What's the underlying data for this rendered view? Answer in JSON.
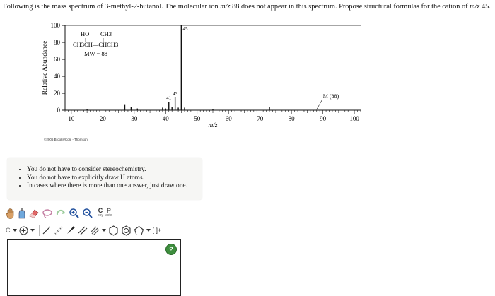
{
  "question": {
    "part1": "Following is the mass spectrum of 3-methyl-2-butanol. The molecular ion ",
    "mz1": "m/z",
    "part2": " 88 does not appear in this spectrum. Propose structural formulas for the cation of ",
    "mz2": "m/z",
    "part3": " 45."
  },
  "chart_data": {
    "type": "bar",
    "ylabel": "Relative Abundance",
    "xlabel": "m/z",
    "xlim": [
      8,
      102
    ],
    "ylim": [
      0,
      100
    ],
    "x_ticks": [
      10,
      20,
      30,
      40,
      50,
      60,
      70,
      80,
      90,
      100
    ],
    "y_ticks": [
      0,
      20,
      40,
      60,
      80,
      100
    ],
    "x": [
      15,
      27,
      29,
      31,
      39,
      40,
      41,
      42,
      43,
      44,
      45,
      46,
      55,
      73,
      88
    ],
    "y": [
      1.5,
      7,
      4,
      2,
      3,
      2,
      10,
      4,
      15,
      3,
      100,
      3,
      1,
      4,
      0.5
    ],
    "peak_labels": [
      {
        "x": 41,
        "text": "41"
      },
      {
        "x": 43,
        "text": "43"
      },
      {
        "x": 45,
        "text": "45"
      },
      {
        "x": 88,
        "text": "M (88)"
      }
    ],
    "structure": {
      "line1_ho": "HO",
      "line1_ch3": "CH3",
      "line2": "CH3CH—CHCH3",
      "line3": "MW = 88"
    }
  },
  "copyright": "©2006 Brooks/Cole - Thomson",
  "notes": [
    "You do not have to consider stereochemistry.",
    "You do not have to explicitly draw H atoms.",
    "In cases where there is more than one answer, just draw one."
  ],
  "toolbar": {
    "copy_letter": "C",
    "copy_label": "opy",
    "paste_letter": "P",
    "paste_label": "aste",
    "element_label": "C",
    "bracket_label": "[ ]±"
  },
  "help_label": "?"
}
